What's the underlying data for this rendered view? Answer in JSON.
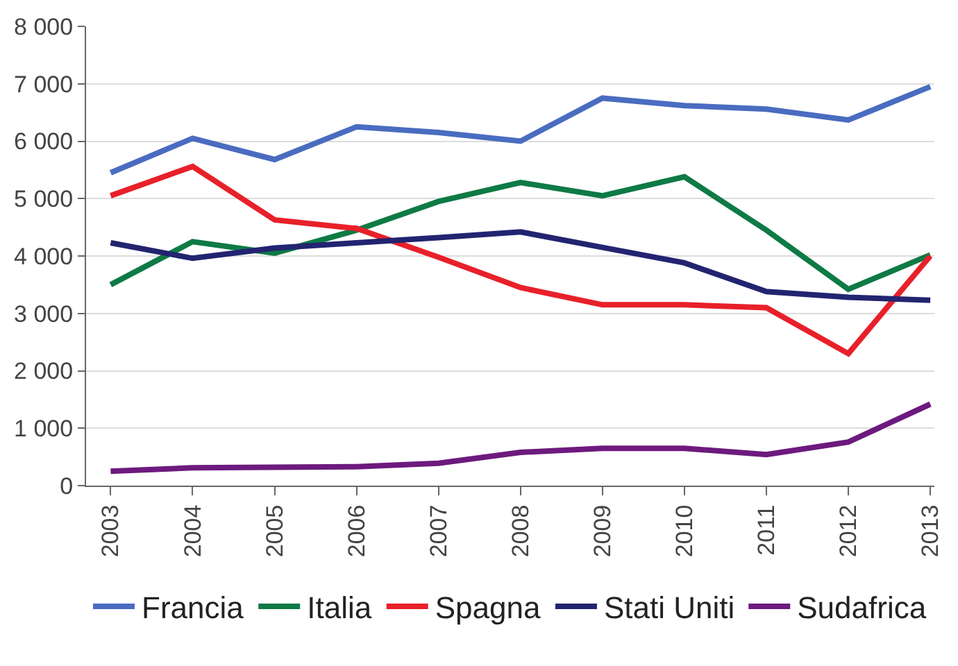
{
  "chart_data": {
    "type": "line",
    "categories": [
      "2003",
      "2004",
      "2005",
      "2006",
      "2007",
      "2008",
      "2009",
      "2010",
      "2011",
      "2012",
      "2013"
    ],
    "series": [
      {
        "name": "Francia",
        "color": "#4a6cc0",
        "values": [
          5450,
          6050,
          5680,
          6250,
          6150,
          6000,
          6750,
          6620,
          6560,
          6370,
          6950
        ]
      },
      {
        "name": "Italia",
        "color": "#0e7a45",
        "values": [
          3500,
          4250,
          4050,
          4450,
          4950,
          5280,
          5050,
          5380,
          4450,
          3420,
          4020
        ]
      },
      {
        "name": "Spagna",
        "color": "#e8202a",
        "values": [
          5050,
          5560,
          4630,
          4480,
          3980,
          3450,
          3150,
          3150,
          3100,
          2300,
          4000
        ]
      },
      {
        "name": "Stati Uniti",
        "color": "#232470",
        "values": [
          4230,
          3960,
          4140,
          4230,
          4320,
          4420,
          4150,
          3880,
          3380,
          3280,
          3230
        ]
      },
      {
        "name": "Sudafrica",
        "color": "#6d1a7e",
        "values": [
          250,
          310,
          320,
          330,
          390,
          580,
          650,
          650,
          540,
          760,
          1420
        ]
      }
    ],
    "ylim": [
      0,
      8000
    ],
    "yticks": [
      0,
      {
        "value": 1000,
        "label": "1 000"
      },
      {
        "value": 2000,
        "label": "2 000"
      },
      {
        "value": 3000,
        "label": "3 000"
      },
      {
        "value": 4000,
        "label": "4 000"
      },
      {
        "value": 5000,
        "label": "5 000"
      },
      {
        "value": 6000,
        "label": "6 000"
      },
      {
        "value": 7000,
        "label": "7 000"
      },
      {
        "value": 8000,
        "label": "8 000"
      }
    ],
    "grid": "y",
    "legend": "bottom",
    "marker": "none",
    "line_style": "solid"
  }
}
